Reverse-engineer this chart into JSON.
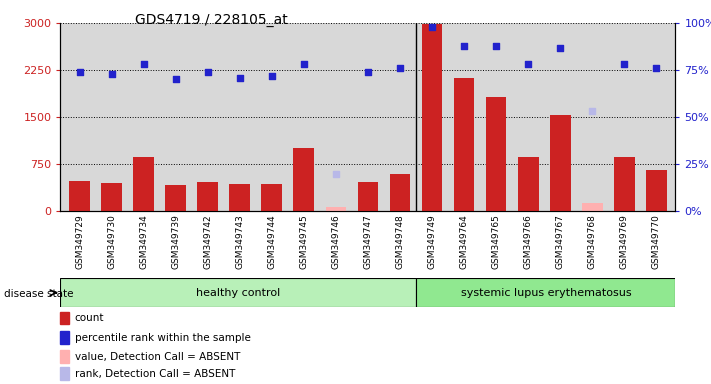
{
  "title": "GDS4719 / 228105_at",
  "samples": [
    "GSM349729",
    "GSM349730",
    "GSM349734",
    "GSM349739",
    "GSM349742",
    "GSM349743",
    "GSM349744",
    "GSM349745",
    "GSM349746",
    "GSM349747",
    "GSM349748",
    "GSM349749",
    "GSM349764",
    "GSM349765",
    "GSM349766",
    "GSM349767",
    "GSM349768",
    "GSM349769",
    "GSM349770"
  ],
  "bar_values": [
    480,
    450,
    870,
    420,
    470,
    430,
    430,
    1000,
    null,
    470,
    600,
    2980,
    2120,
    1820,
    870,
    1530,
    null,
    870,
    660
  ],
  "bar_absent_value": [
    null,
    null,
    null,
    null,
    null,
    null,
    null,
    null,
    60,
    null,
    null,
    null,
    null,
    null,
    null,
    null,
    130,
    null,
    null
  ],
  "dot_values": [
    74,
    73,
    78,
    70,
    74,
    71,
    72,
    78,
    null,
    74,
    76,
    98,
    88,
    88,
    78,
    87,
    null,
    78,
    76
  ],
  "dot_absent_value": [
    null,
    null,
    null,
    null,
    null,
    null,
    null,
    null,
    20,
    null,
    null,
    null,
    null,
    null,
    null,
    null,
    53,
    null,
    null
  ],
  "group_boundary": 11,
  "healthy_label": "healthy control",
  "lupus_label": "systemic lupus erythematosus",
  "disease_state_label": "disease state",
  "ylim_left": [
    0,
    3000
  ],
  "ylim_right": [
    0,
    100
  ],
  "yticks_left": [
    0,
    750,
    1500,
    2250,
    3000
  ],
  "yticks_right": [
    0,
    25,
    50,
    75,
    100
  ],
  "background_color": "#ffffff",
  "plot_bg_color": "#d8d8d8",
  "bar_color_red": "#cc2222",
  "bar_color_absent": "#ffb0b0",
  "dot_color_blue": "#2222cc",
  "dot_color_absent": "#b8b8e8",
  "healthy_bg": "#b8f0b8",
  "lupus_bg": "#90e890",
  "legend_items": [
    "count",
    "percentile rank within the sample",
    "value, Detection Call = ABSENT",
    "rank, Detection Call = ABSENT"
  ]
}
